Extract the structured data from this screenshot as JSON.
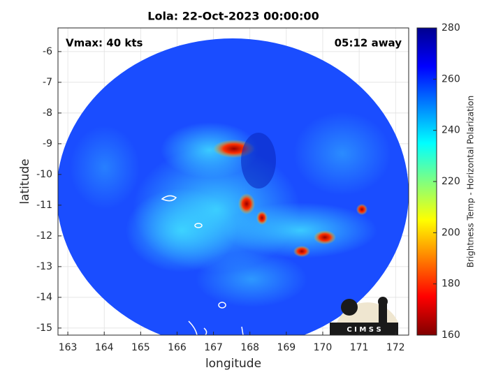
{
  "chart_data": {
    "type": "image",
    "title": "Lola: 22-Oct-2023 00:00:00",
    "annotations": [
      "Vmax: 40 kts",
      "05:12 away"
    ],
    "x_label": "longitude",
    "y_label": "latitude",
    "xlim": [
      162.73,
      172.36
    ],
    "ylim": [
      -15.23,
      -5.23
    ],
    "xticks": [
      163,
      164,
      165,
      166,
      167,
      168,
      169,
      170,
      171,
      172
    ],
    "yticks": [
      -6,
      -7,
      -8,
      -9,
      -10,
      -11,
      -12,
      -13,
      -14,
      -15
    ],
    "grid": true,
    "colormap": "jet",
    "colorbar": {
      "label": "Brightness Temp - Horizontal Polarization",
      "lim": [
        160,
        280
      ],
      "ticks": [
        160,
        180,
        200,
        220,
        240,
        260,
        280
      ]
    },
    "logo": "C I M S S"
  }
}
